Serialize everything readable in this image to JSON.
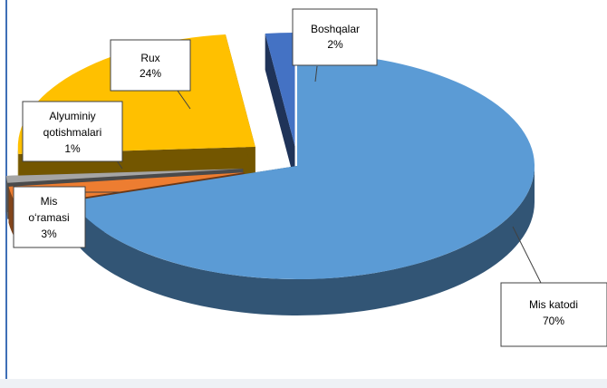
{
  "chart_data": {
    "type": "pie",
    "title": "",
    "three_d": true,
    "exploded": true,
    "legend": "none",
    "slices": [
      {
        "label": "Mis katodi",
        "value": 70,
        "value_label": "70%",
        "color": "#5b9bd5"
      },
      {
        "label": "Mis o‘ramasi",
        "value": 3,
        "value_label": "3%",
        "color": "#ed7d31"
      },
      {
        "label": "Alyuminiy qotishmalari",
        "value": 1,
        "value_label": "1%",
        "color": "#a5a5a5"
      },
      {
        "label": "Rux",
        "value": 24,
        "value_label": "24%",
        "color": "#ffc000"
      },
      {
        "label": "Boshqalar",
        "value": 2,
        "value_label": "2%",
        "color": "#4472c4"
      }
    ]
  },
  "labels": {
    "mis_katodi": [
      "Mis katodi",
      "70%"
    ],
    "mis_oramasi": [
      "Mis",
      "o‘ramasi",
      "3%"
    ],
    "alyuminiy": [
      "Alyuminiy",
      "qotishmalari",
      "1%"
    ],
    "rux": [
      "Rux",
      "24%"
    ],
    "boshqalar": [
      "Boshqalar",
      "2%"
    ]
  }
}
